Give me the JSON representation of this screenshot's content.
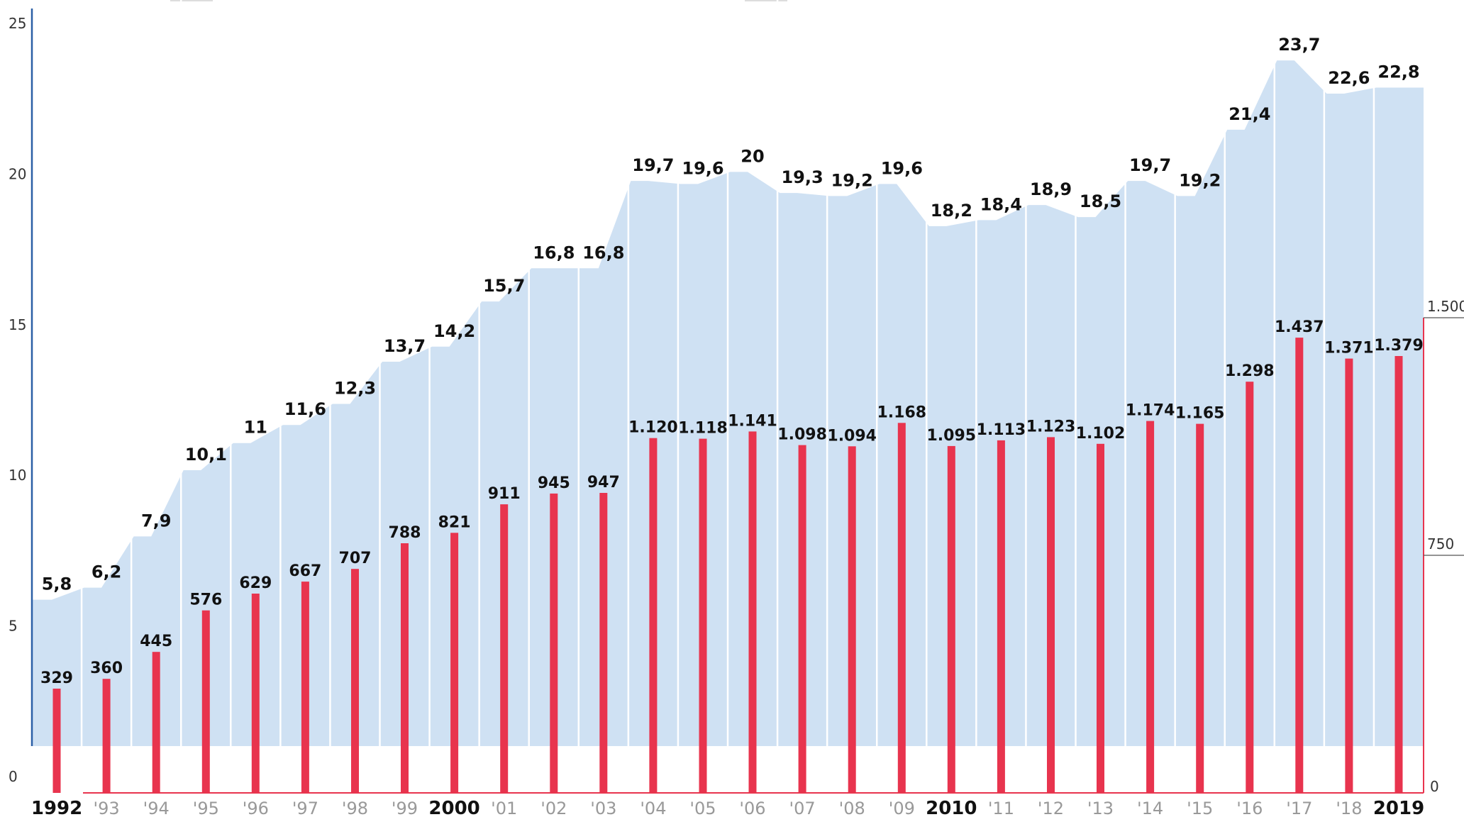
{
  "chart_data": {
    "type": "bar",
    "categories": [
      "1992",
      "'93",
      "'94",
      "'95",
      "'96",
      "'97",
      "'98",
      "'99",
      "2000",
      "'01",
      "'02",
      "'03",
      "'04",
      "'05",
      "'06",
      "'07",
      "'08",
      "'09",
      "2010",
      "'11",
      "'12",
      "'13",
      "'14",
      "'15",
      "'16",
      "'17",
      "'18",
      "2019"
    ],
    "major_categories": [
      "1992",
      "2000",
      "2010",
      "2019"
    ],
    "series": [
      {
        "type": "area",
        "axis": "left",
        "color": "#cfe1f3",
        "values": [
          5.8,
          6.2,
          7.9,
          10.1,
          11,
          11.6,
          12.3,
          13.7,
          14.2,
          15.7,
          16.8,
          16.8,
          19.7,
          19.6,
          20,
          19.3,
          19.2,
          19.6,
          18.2,
          18.4,
          18.9,
          18.5,
          19.7,
          19.2,
          21.4,
          23.7,
          22.6,
          22.8
        ],
        "labels": [
          "5,8",
          "6,2",
          "7,9",
          "10,1",
          "11",
          "11,6",
          "12,3",
          "13,7",
          "14,2",
          "15,7",
          "16,8",
          "16,8",
          "19,7",
          "19,6",
          "20",
          "19,3",
          "19,2",
          "19,6",
          "18,2",
          "18,4",
          "18,9",
          "18,5",
          "19,7",
          "19,2",
          "21,4",
          "23,7",
          "22,6",
          "22,8"
        ]
      },
      {
        "type": "bar",
        "axis": "right",
        "color": "#e8344e",
        "values": [
          329,
          360,
          445,
          576,
          629,
          667,
          707,
          788,
          821,
          911,
          945,
          947,
          1120,
          1118,
          1141,
          1098,
          1094,
          1168,
          1095,
          1113,
          1123,
          1102,
          1174,
          1165,
          1298,
          1437,
          1371,
          1379
        ],
        "labels": [
          "329",
          "360",
          "445",
          "576",
          "629",
          "667",
          "707",
          "788",
          "821",
          "911",
          "945",
          "947",
          "1.120",
          "1.118",
          "1.141",
          "1.098",
          "1.094",
          "1.168",
          "1.095",
          "1.113",
          "1.123",
          "1.102",
          "1.174",
          "1.165",
          "1.298",
          "1.437",
          "1.371",
          "1.379"
        ]
      }
    ],
    "y_left": {
      "ylim": [
        0,
        25
      ],
      "ticks": [
        0,
        5,
        10,
        15,
        20,
        25
      ],
      "tick_labels": [
        "0",
        "5",
        "10",
        "15",
        "20",
        "25"
      ],
      "axis_color": "#2b5fa6"
    },
    "y_right": {
      "ylim": [
        0,
        1500
      ],
      "ticks": [
        0,
        750,
        1500
      ],
      "tick_labels": [
        "0",
        "750",
        "1.500"
      ],
      "axis_color": "#e8344e"
    },
    "title": "",
    "xlabel": "",
    "ylabel": "",
    "grid": false
  }
}
